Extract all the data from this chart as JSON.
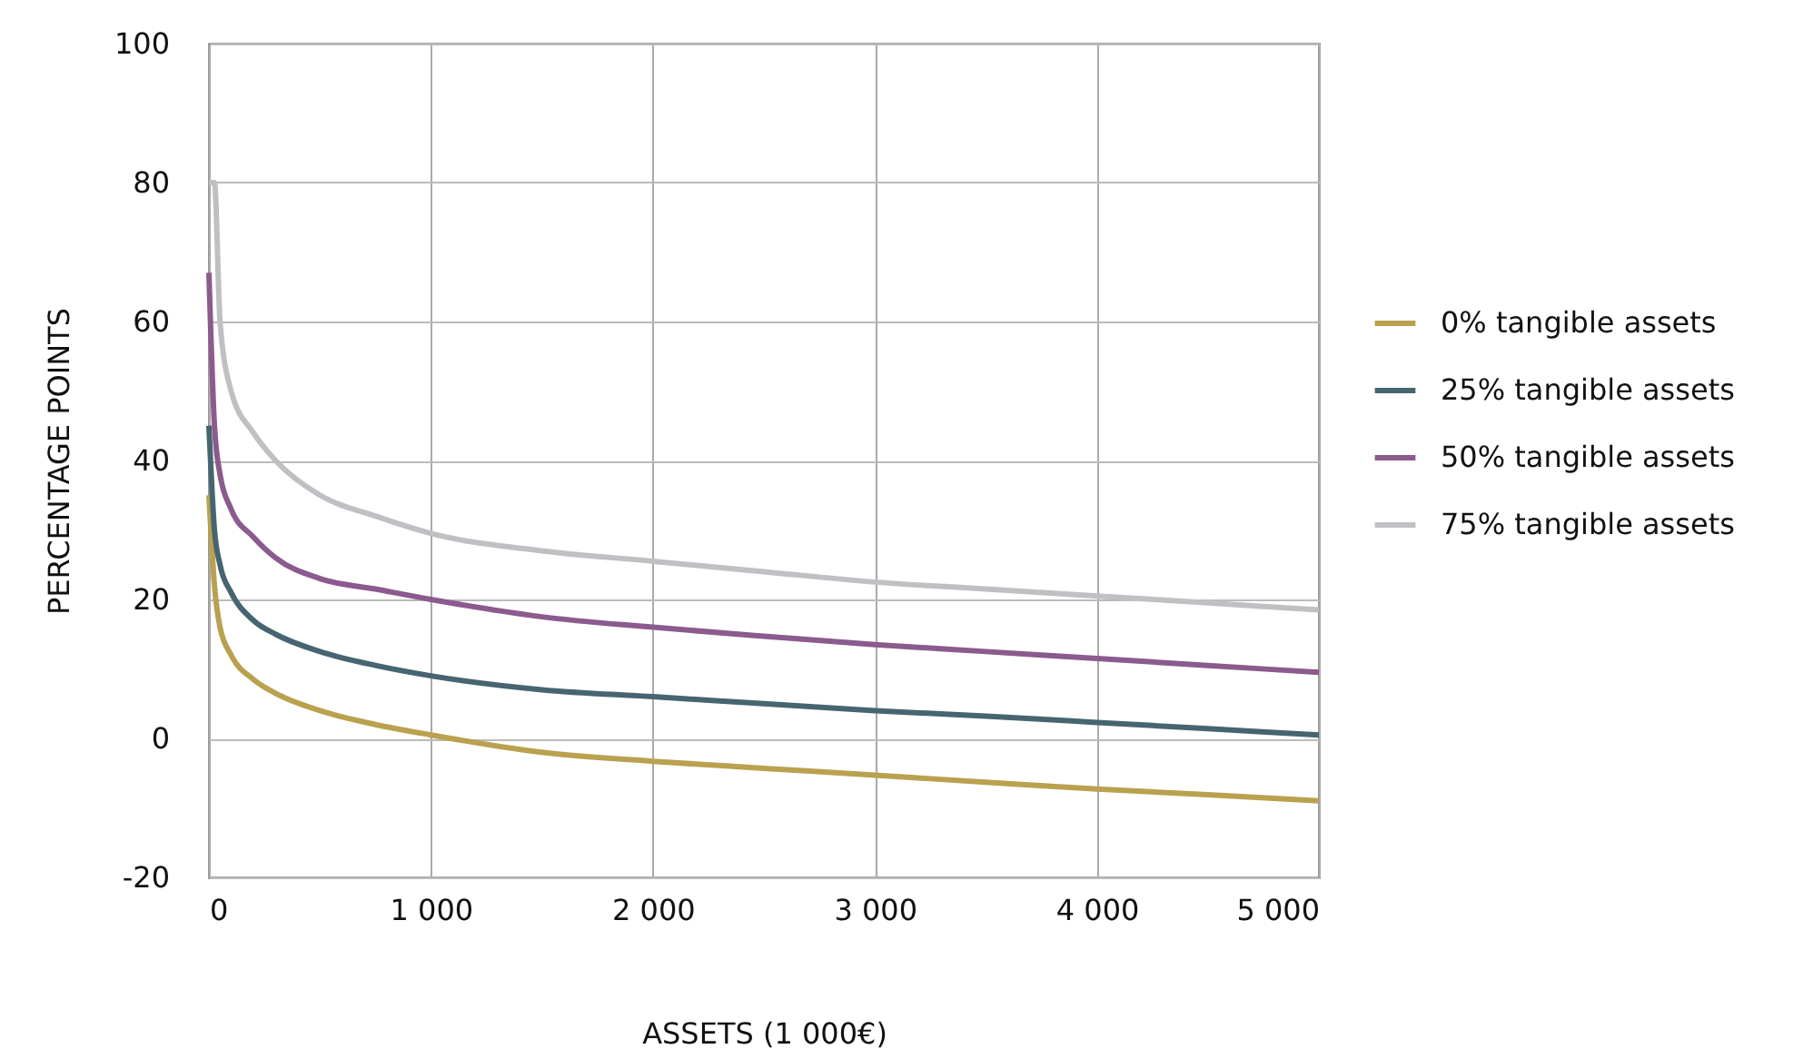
{
  "chart_data": {
    "type": "line",
    "xlabel": "ASSETS (1 000€)",
    "ylabel": "PERCENTAGE POINTS",
    "xlim": [
      0,
      5000
    ],
    "xticks": [
      0,
      {
        "value": 1000,
        "label": "1 000"
      },
      {
        "value": 2000,
        "label": "2 000"
      },
      {
        "value": 3000,
        "label": "3 000"
      },
      {
        "value": 4000,
        "label": "4 000"
      },
      {
        "value": 5000,
        "label": "5 000"
      }
    ],
    "ylim": [
      -20,
      100
    ],
    "yticks": [
      -20,
      0,
      20,
      40,
      60,
      80,
      100
    ],
    "grid": true,
    "legend": "right",
    "x": [
      0,
      25,
      50,
      100,
      200,
      300,
      500,
      750,
      1000,
      1500,
      2000,
      2500,
      3000,
      3500,
      4000,
      4500,
      5000
    ],
    "series": [
      {
        "name": "0% tangible assets",
        "color": "#b9a14f",
        "values": [
          35,
          22,
          16,
          12,
          8.5,
          6.5,
          4,
          2,
          0.5,
          -2,
          -3.3,
          -4.3,
          -5.3,
          -6.3,
          -7.3,
          -8.1,
          -9
        ]
      },
      {
        "name": "25% tangible assets",
        "color": "#466570",
        "values": [
          45,
          30,
          25,
          21,
          17,
          15,
          12.5,
          10.5,
          9,
          7,
          6,
          5,
          4,
          3.2,
          2.3,
          1.4,
          0.5
        ]
      },
      {
        "name": "50% tangible assets",
        "color": "#8b5a8e",
        "values": [
          67,
          45,
          38,
          33,
          29,
          26,
          23,
          21.5,
          20,
          17.5,
          16,
          14.7,
          13.5,
          12.5,
          11.5,
          10.5,
          9.5
        ]
      },
      {
        "name": "75% tangible assets",
        "color": "#c0c0c4",
        "values": [
          80,
          80,
          60,
          50,
          44,
          40,
          35,
          32,
          29.5,
          27,
          25.5,
          24,
          22.5,
          21.5,
          20.5,
          19.5,
          18.5
        ]
      }
    ]
  }
}
